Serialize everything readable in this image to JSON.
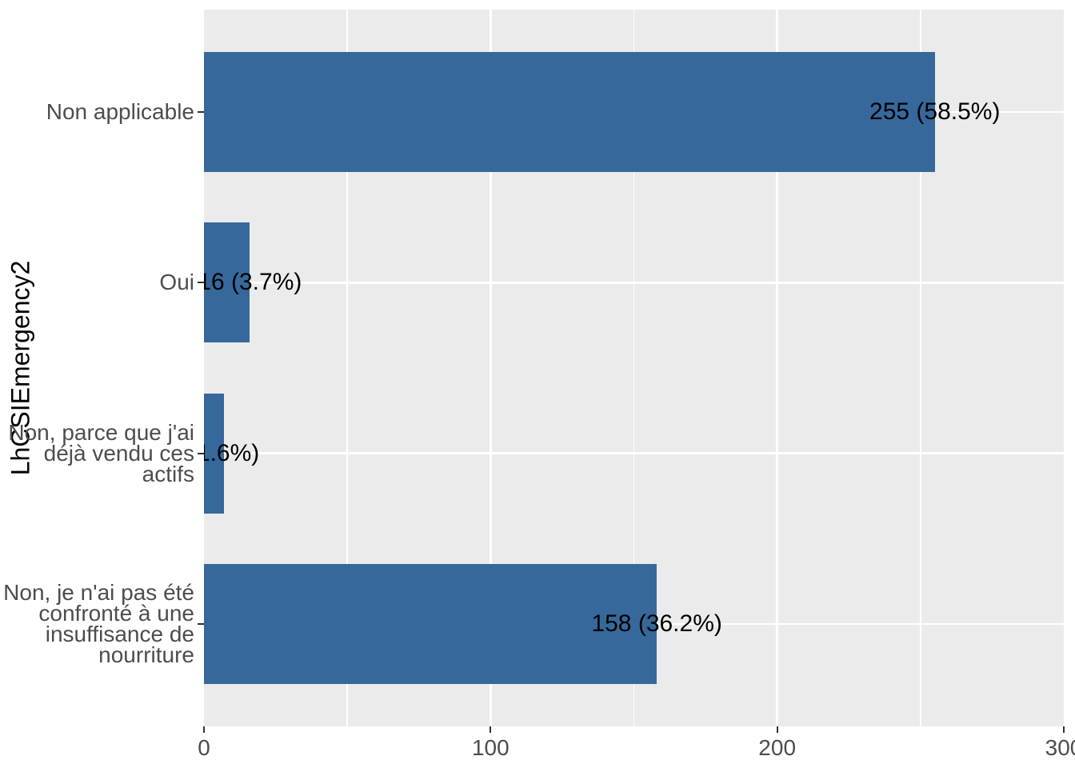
{
  "figure": {
    "background": "#FFFFFF",
    "panel_background": "#EBEBEB",
    "gridline_color": "#FFFFFF",
    "axis_text_color": "#4D4D4D",
    "axis_title_color": "#000000",
    "tick_mark_color": "#333333",
    "bar_label_color": "#000000"
  },
  "chart_data": {
    "type": "bar",
    "orientation": "horizontal",
    "title": "",
    "xlabel": "",
    "ylabel": "LhCSIEmergency2",
    "categories": [
      "Non applicable",
      "Oui",
      "Non, parce que j'ai déjà vendu ces actifs",
      "Non, je n'ai pas été confronté à une insuffisance de nourriture"
    ],
    "category_display": [
      "Non applicable",
      "Oui",
      "Non, parce que j'ai\ndéjà vendu ces\nactifs",
      "Non, je n'ai pas été\nconfronté à une\ninsuffisance de\nnourriture"
    ],
    "values": [
      255,
      16,
      7,
      158
    ],
    "percent": [
      58.5,
      3.7,
      1.6,
      36.2
    ],
    "bar_labels": [
      "255 (58.5%)",
      "16 (3.7%)",
      "(1.6%)",
      "158 (36.2%)"
    ],
    "bar_color": "#36689B",
    "xlim": [
      0,
      300
    ],
    "x_tick_labels": [
      "0",
      "100",
      "200",
      "300"
    ],
    "x_tick_values": [
      0,
      100,
      200,
      300
    ],
    "x_major_gridlines": [
      100,
      200
    ],
    "x_minor_gridlines": [
      50,
      150,
      250
    ],
    "grid": true,
    "legend": "none"
  }
}
